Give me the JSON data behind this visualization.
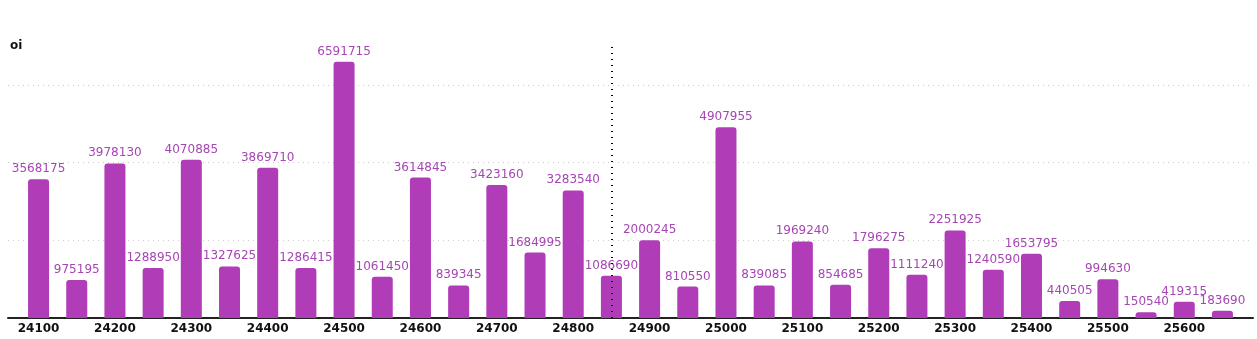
{
  "chart_data": {
    "type": "bar",
    "ylabel": "oi",
    "x": [
      24100,
      24150,
      24200,
      24250,
      24300,
      24350,
      24400,
      24450,
      24500,
      24550,
      24600,
      24650,
      24700,
      24750,
      24800,
      24850,
      24900,
      24950,
      25000,
      25050,
      25100,
      25150,
      25200,
      25250,
      25300,
      25350,
      25400,
      25450,
      25500,
      25550,
      25600,
      25650
    ],
    "values": [
      3568175,
      975195,
      3978130,
      1288950,
      4070885,
      1327625,
      3869710,
      1286415,
      6591715,
      1061450,
      3614845,
      839345,
      3423160,
      1684995,
      3283540,
      1086690,
      2000245,
      810550,
      4907955,
      839085,
      1969240,
      854685,
      1796275,
      1111240,
      2251925,
      1240590,
      1653795,
      440505,
      994630,
      150540,
      419315,
      183690
    ],
    "color": "#b03cb8",
    "data_labels": true,
    "xlim": [
      24060,
      25690
    ],
    "xticks": [
      24100,
      24200,
      24300,
      24400,
      24500,
      24600,
      24700,
      24800,
      24900,
      25000,
      25100,
      25200,
      25300,
      25400,
      25500,
      25600
    ],
    "ylim": [
      0,
      7000000
    ],
    "yticks": [
      {
        "value": 0,
        "label": null
      },
      {
        "value": 2000000,
        "label": null
      },
      {
        "value": 4000000,
        "label": null
      },
      {
        "value": 6000000,
        "label": null
      }
    ],
    "tick_labels": "x",
    "grid": "y",
    "ref_lines": [
      {
        "axis": "x",
        "value": 24850,
        "line_style": "dotted",
        "color": "#000000"
      }
    ]
  }
}
